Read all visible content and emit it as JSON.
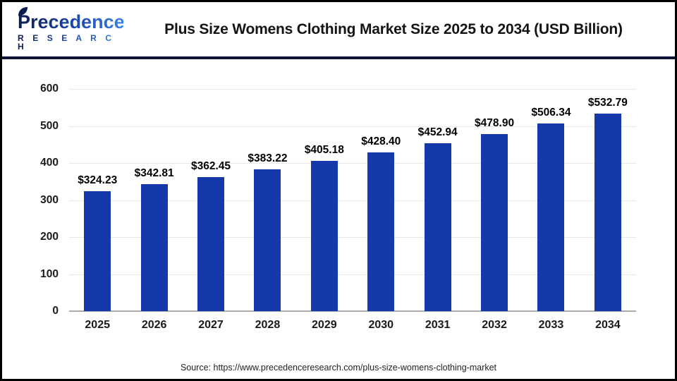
{
  "header": {
    "logo_line1": "Precedence",
    "logo_line2": "R E S E A R C H",
    "title": "Plus Size Womens Clothing Market Size 2025 to 2034 (USD Billion)"
  },
  "chart_data": {
    "type": "bar",
    "title": "Plus Size Womens Clothing Market Size 2025 to 2034 (USD Billion)",
    "categories": [
      "2025",
      "2026",
      "2027",
      "2028",
      "2029",
      "2030",
      "2031",
      "2032",
      "2033",
      "2034"
    ],
    "values": [
      324.23,
      342.81,
      362.45,
      383.22,
      405.18,
      428.4,
      452.94,
      478.9,
      506.34,
      532.79
    ],
    "value_labels": [
      "$324.23",
      "$342.81",
      "$362.45",
      "$383.22",
      "$405.18",
      "$428.40",
      "$452.94",
      "$478.90",
      "$506.34",
      "$532.79"
    ],
    "ylabel": "",
    "xlabel": "",
    "ylim": [
      0,
      600
    ],
    "yticks": [
      600,
      500,
      400,
      300,
      200,
      100,
      0
    ],
    "grid": true,
    "legend": "none",
    "bar_color": "#1539a8"
  },
  "colors": {
    "bar": "#1539a8",
    "divider": "#0e1133",
    "frame_border": "#000000",
    "gridline": "#e9e9e9",
    "baseline": "#aaaaaa",
    "logo_gradient_start": "#0c1c4e",
    "logo_gradient_end": "#3b82e0"
  },
  "footer": {
    "source": "Source: https://www.precedenceresearch.com/plus-size-womens-clothing-market"
  }
}
